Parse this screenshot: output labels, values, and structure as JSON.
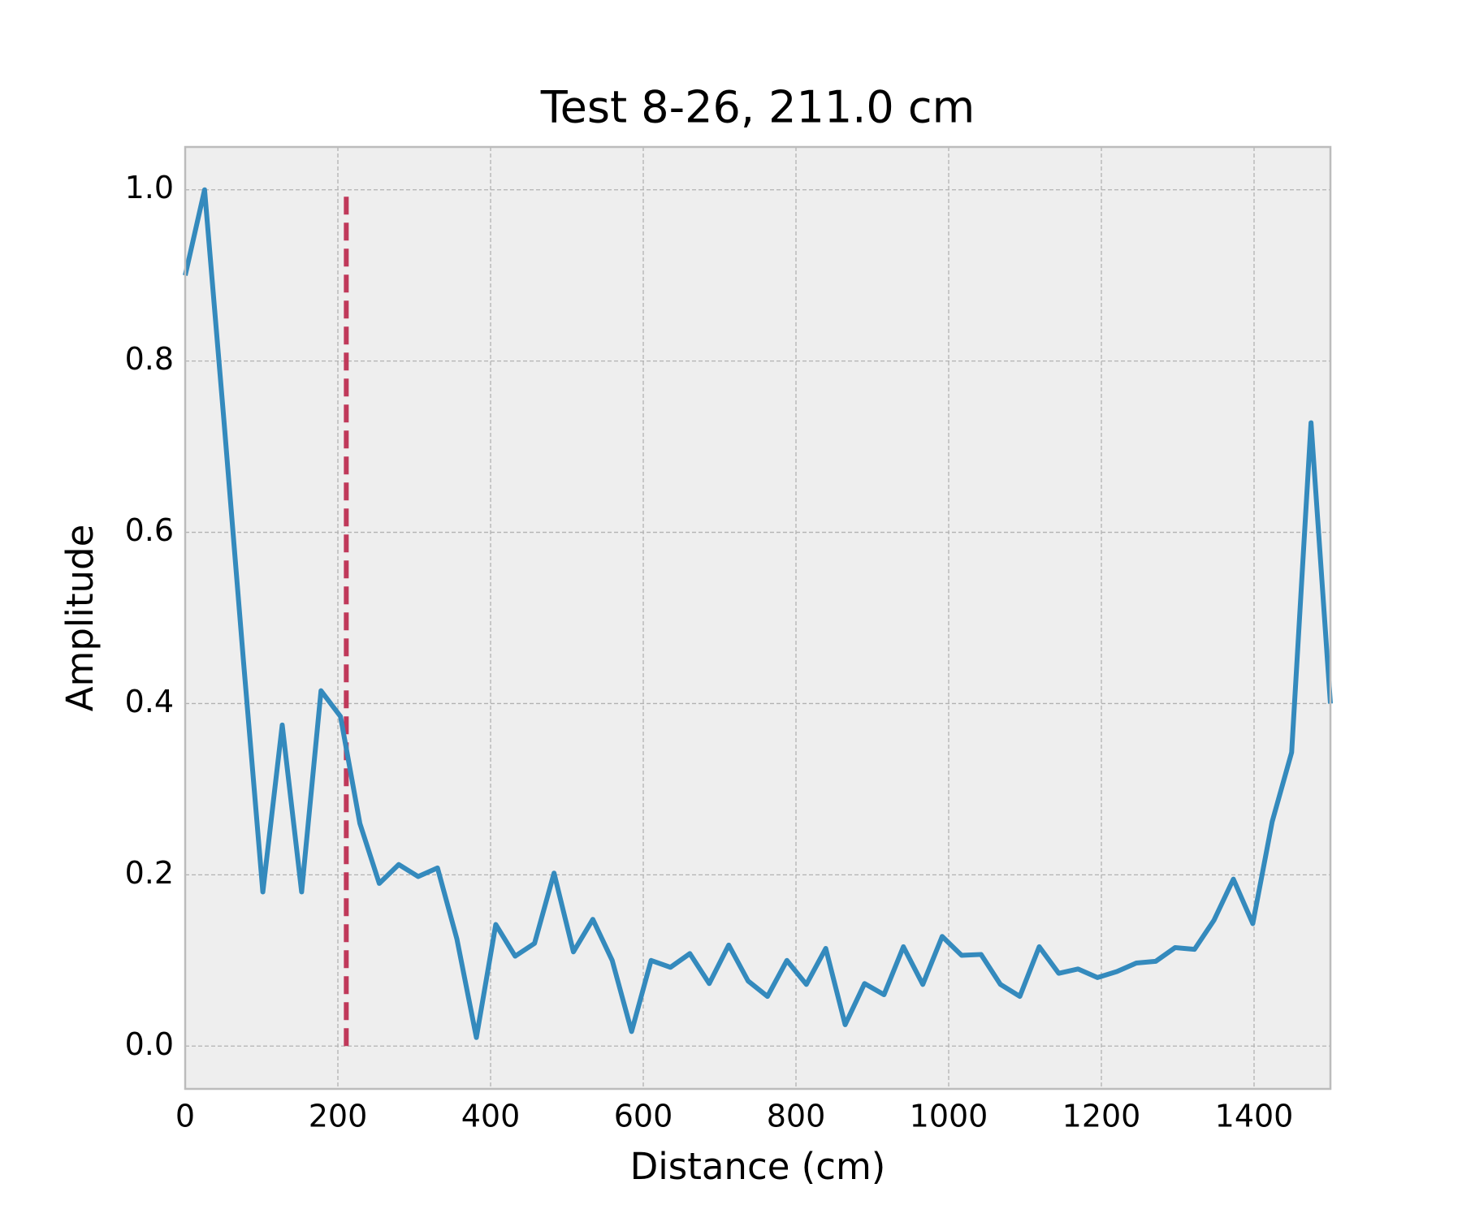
{
  "chart_data": {
    "type": "line",
    "title": "Test 8-26, 211.0 cm",
    "xlabel": "Distance (cm)",
    "ylabel": "Amplitude",
    "x": [
      0,
      25.4,
      50.8,
      76.3,
      101.7,
      127.1,
      152.5,
      177.9,
      203.4,
      228.8,
      254.2,
      279.7,
      305.1,
      330.5,
      355.9,
      381.4,
      406.8,
      432.2,
      457.6,
      483.1,
      508.5,
      533.9,
      559.3,
      584.7,
      610.2,
      635.6,
      661.0,
      686.4,
      711.9,
      737.3,
      762.7,
      788.1,
      813.6,
      839.0,
      864.4,
      889.8,
      915.3,
      940.7,
      966.1,
      991.5,
      1016.9,
      1042.4,
      1067.8,
      1093.2,
      1118.6,
      1144.1,
      1169.5,
      1194.9,
      1220.3,
      1245.8,
      1271.2,
      1296.6,
      1322.0,
      1347.5,
      1372.9,
      1398.3,
      1423.7,
      1449.2,
      1474.6,
      1500
    ],
    "series": [
      {
        "color": "#348abd",
        "values": [
          0.9,
          1.0,
          0.73,
          0.45,
          0.18,
          0.375,
          0.18,
          0.415,
          0.385,
          0.26,
          0.19,
          0.212,
          0.198,
          0.208,
          0.125,
          0.01,
          0.142,
          0.105,
          0.12,
          0.202,
          0.11,
          0.148,
          0.1,
          0.017,
          0.1,
          0.092,
          0.108,
          0.073,
          0.118,
          0.076,
          0.058,
          0.1,
          0.072,
          0.114,
          0.025,
          0.073,
          0.06,
          0.116,
          0.072,
          0.128,
          0.106,
          0.107,
          0.072,
          0.058,
          0.116,
          0.085,
          0.09,
          0.08,
          0.087,
          0.097,
          0.099,
          0.115,
          0.113,
          0.147,
          0.195,
          0.143,
          0.262,
          0.343,
          0.728,
          0.4
        ]
      }
    ],
    "vline": {
      "x": 211,
      "ymin": 0,
      "ymax": 1,
      "color": "#c0395a"
    },
    "xlim": [
      0,
      1500
    ],
    "xticks": [
      0,
      200,
      400,
      600,
      800,
      1000,
      1200,
      1400
    ],
    "ylim": [
      -0.05,
      1.05
    ],
    "yticks": [
      {
        "value": 0,
        "label": "0.0"
      },
      0.2,
      0.4,
      0.6,
      0.8,
      {
        "value": 1,
        "label": "1.0"
      }
    ],
    "grid": true
  }
}
